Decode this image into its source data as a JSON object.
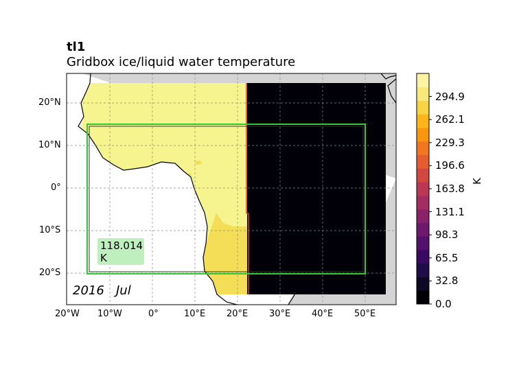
{
  "title": "tl1",
  "subtitle": "Gridbox ice/liquid water temperature",
  "date_label": "2016   Jul",
  "value_readout": {
    "value": "118.014",
    "unit": "K"
  },
  "colorbar": {
    "unit_label": "K",
    "tick_labels": [
      "0.0",
      "32.8",
      "65.5",
      "98.3",
      "131.1",
      "163.8",
      "196.6",
      "229.3",
      "262.1",
      "294.9"
    ],
    "colors": [
      "#000004",
      "#0c0826",
      "#1f0c48",
      "#390963",
      "#550f6d",
      "#6f196e",
      "#89226a",
      "#a32c61",
      "#bc3754",
      "#d34743",
      "#e55c30",
      "#f2751f",
      "#fa9510",
      "#fbb41a",
      "#f6d443",
      "#f9e87a",
      "#fcf4a2"
    ],
    "range": [
      0.0,
      327.6
    ]
  },
  "axes": {
    "lat_labels": [
      "20°N",
      "10°N",
      "0°",
      "10°S",
      "20°S"
    ],
    "lon_labels": [
      "20°W",
      "10°W",
      "0°",
      "10°E",
      "20°E",
      "30°E",
      "40°E",
      "50°E"
    ]
  },
  "map_colors": {
    "warm_region": "#f5f48e",
    "warm_region_south": "#f4de58",
    "cold_region": "#010008",
    "no_data": "#d4d4d4",
    "ocean": "#ffffff",
    "selection_box": "#32c832"
  }
}
